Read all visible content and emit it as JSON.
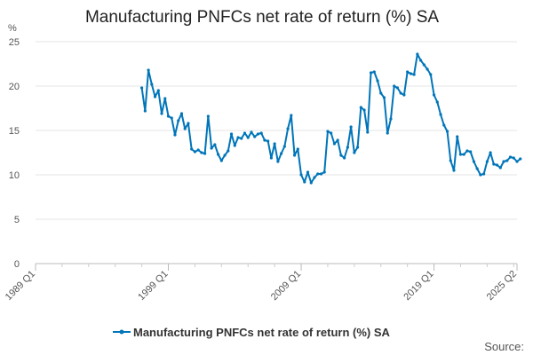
{
  "chart_data": {
    "type": "line",
    "title": "Manufacturing PNFCs net rate of return (%) SA",
    "ylabel": "%",
    "xlabel": "",
    "ylim": [
      0,
      25
    ],
    "y_ticks": [
      "0",
      "5",
      "10",
      "15",
      "20",
      "25"
    ],
    "x_tick_labels": [
      "1989 Q1",
      "1999 Q1",
      "2009 Q1",
      "2019 Q1",
      "2025 Q2"
    ],
    "grid": true,
    "legend_position": "bottom",
    "series": [
      {
        "name": "Manufacturing PNFCs net rate of return (%) SA",
        "color": "#0075b9",
        "start": "1997 Q1",
        "values": [
          19.8,
          17.2,
          21.8,
          20.2,
          18.8,
          19.5,
          16.9,
          18.6,
          16.6,
          16.4,
          14.5,
          16.1,
          16.9,
          15.2,
          15.8,
          12.9,
          12.6,
          12.8,
          12.5,
          12.4,
          16.6,
          13.0,
          13.4,
          12.3,
          11.6,
          12.2,
          12.7,
          14.6,
          13.3,
          14.2,
          14.1,
          14.7,
          14.2,
          14.8,
          14.3,
          14.6,
          14.7,
          13.9,
          13.8,
          11.9,
          13.5,
          11.5,
          12.4,
          13.2,
          15.2,
          16.7,
          12.2,
          12.9,
          10.0,
          9.2,
          10.3,
          9.1,
          9.7,
          10.1,
          10.1,
          10.3,
          14.9,
          14.7,
          13.5,
          13.9,
          12.2,
          11.9,
          13.1,
          15.4,
          12.5,
          13.1,
          17.6,
          17.3,
          14.8,
          21.5,
          21.6,
          20.6,
          19.2,
          18.7,
          14.7,
          16.3,
          20.0,
          19.8,
          19.2,
          19.0,
          21.6,
          21.4,
          21.3,
          23.6,
          22.9,
          22.4,
          21.9,
          21.3,
          19.0,
          18.2,
          16.8,
          15.6,
          14.9,
          11.6,
          10.5,
          14.3,
          12.3,
          12.3,
          12.7,
          12.6,
          11.5,
          10.7,
          10.0,
          10.1,
          11.5,
          12.5,
          11.2,
          11.1,
          10.8,
          11.5,
          11.6,
          12.0,
          11.9,
          11.5,
          11.8
        ]
      }
    ],
    "legend": [
      "Manufacturing PNFCs net rate of return (%) SA"
    ],
    "source_label": "Source:"
  }
}
